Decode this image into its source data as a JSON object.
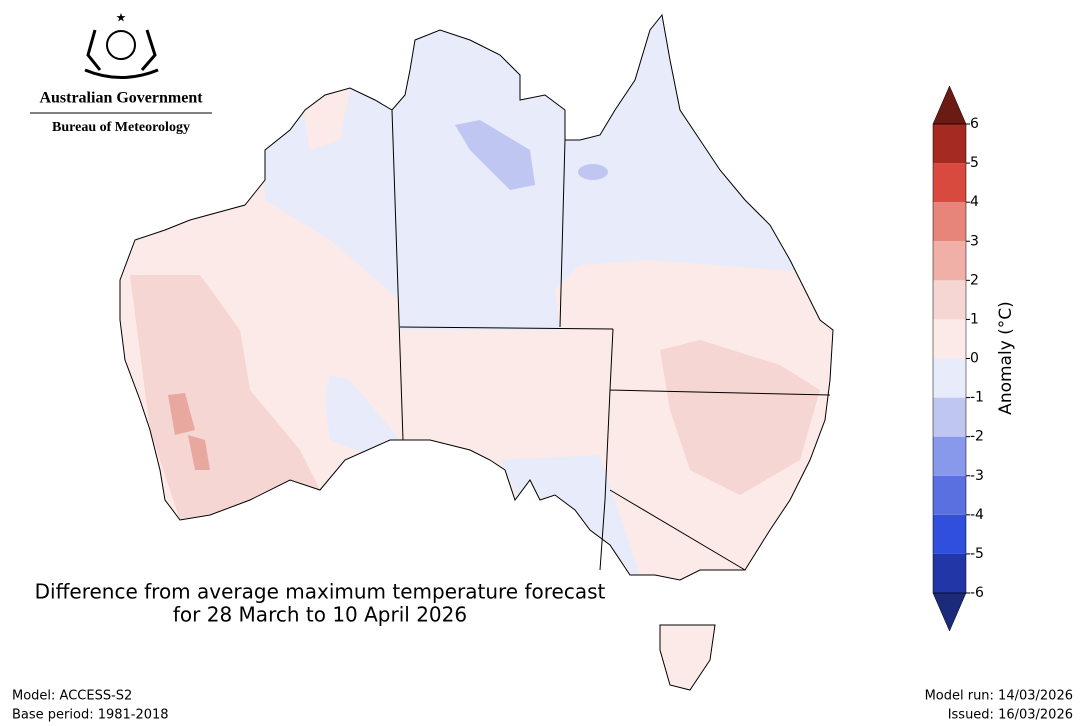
{
  "header": {
    "government": "Australian Government",
    "bureau": "Bureau of Meteorology"
  },
  "title": [
    "Difference from average maximum temperature forecast",
    "for 28 March to 10 April 2026"
  ],
  "colorbar": {
    "label": "Anomaly (°C)",
    "ticks": [
      -6,
      -5,
      -4,
      -3,
      -2,
      -1,
      0,
      1,
      2,
      3,
      4,
      5,
      6
    ],
    "colors": [
      "#1b2a7a",
      "#2336a8",
      "#2f4fdc",
      "#5a6fe0",
      "#8898ea",
      "#c0c6f2",
      "#e8ebfa",
      "#fceae8",
      "#f6d6d2",
      "#f0b0a8",
      "#e8857b",
      "#d94a3e",
      "#a52a22",
      "#6b1a14"
    ]
  },
  "footer": {
    "model": "Model: ACCESS-S2",
    "base_period": "Base period: 1981-2018",
    "model_run": "Model run: 14/03/2026",
    "issued": "Issued: 16/03/2026"
  }
}
